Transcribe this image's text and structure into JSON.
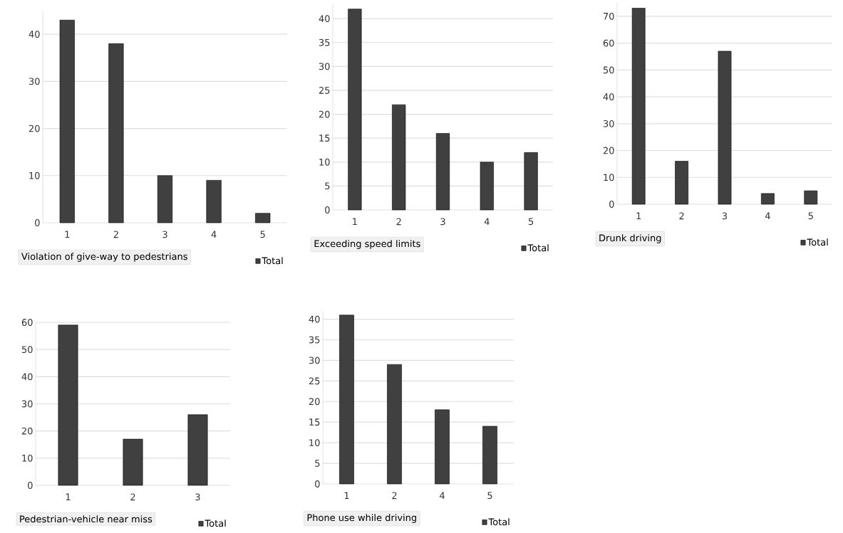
{
  "chart_data": [
    {
      "type": "bar",
      "xlabel": "Violation of give-way to pedestrians",
      "categories": [
        "1",
        "2",
        "3",
        "4",
        "5"
      ],
      "series": [
        {
          "name": "Total",
          "color": "#404040",
          "values": [
            43,
            38,
            10,
            9,
            2
          ]
        }
      ],
      "ylim": [
        0,
        45
      ],
      "yticks": [
        0,
        10,
        20,
        30,
        40
      ],
      "grid": "y",
      "legend": "bottom right"
    },
    {
      "type": "bar",
      "xlabel": "Exceeding speed limits",
      "categories": [
        "1",
        "2",
        "3",
        "4",
        "5"
      ],
      "series": [
        {
          "name": "Total",
          "color": "#404040",
          "values": [
            42,
            22,
            16,
            10,
            12
          ]
        }
      ],
      "ylim": [
        0,
        43
      ],
      "yticks": [
        0,
        5,
        10,
        15,
        20,
        25,
        30,
        35,
        40
      ],
      "grid": "y",
      "legend": "bottom right"
    },
    {
      "type": "bar",
      "xlabel": "Drunk driving",
      "categories": [
        "1",
        "2",
        "3",
        "4",
        "5"
      ],
      "series": [
        {
          "name": "Total",
          "color": "#404040",
          "values": [
            73,
            16,
            57,
            4,
            5
          ]
        }
      ],
      "ylim": [
        0,
        75
      ],
      "yticks": [
        0,
        10,
        20,
        30,
        40,
        50,
        60,
        70
      ],
      "grid": "y",
      "legend": "bottom right"
    },
    {
      "type": "bar",
      "xlabel": "Pedestrian-vehicle near miss",
      "categories": [
        "1",
        "2",
        "3"
      ],
      "series": [
        {
          "name": "Total",
          "color": "#404040",
          "values": [
            59,
            17,
            26
          ]
        }
      ],
      "ylim": [
        0,
        60
      ],
      "yticks": [
        0,
        10,
        20,
        30,
        40,
        50,
        60
      ],
      "grid": "y",
      "legend": "bottom right"
    },
    {
      "type": "bar",
      "xlabel": "Phone use while driving",
      "categories": [
        "1",
        "2",
        "4",
        "5"
      ],
      "series": [
        {
          "name": "Total",
          "color": "#404040",
          "values": [
            41,
            29,
            18,
            14
          ]
        }
      ],
      "ylim": [
        0,
        42
      ],
      "yticks": [
        0,
        5,
        10,
        15,
        20,
        25,
        30,
        35,
        40
      ],
      "grid": "y",
      "legend": "bottom right"
    }
  ]
}
